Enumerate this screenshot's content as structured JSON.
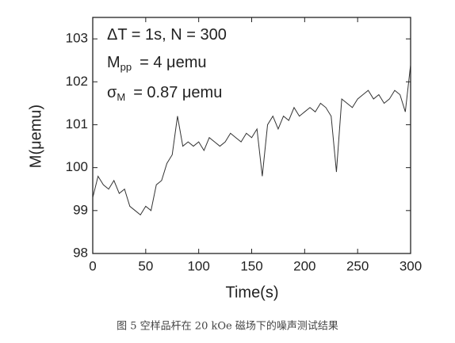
{
  "chart_data": {
    "type": "line",
    "xlabel": "Time(s)",
    "ylabel": "M(μemu)",
    "annotations": [
      {
        "main": "ΔT = 1s, N = 300"
      },
      {
        "main": "M",
        "sub": "pp",
        "rest": "= 4 μemu"
      },
      {
        "main": "σ",
        "sub": "M",
        "rest": "= 0.87 μemu"
      }
    ],
    "caption": "图 5 空样品杆在 20 kOe 磁场下的噪声测试结果",
    "x": [
      0,
      5,
      10,
      15,
      20,
      25,
      30,
      35,
      40,
      45,
      50,
      55,
      60,
      65,
      70,
      75,
      80,
      85,
      90,
      95,
      100,
      105,
      110,
      115,
      120,
      125,
      130,
      135,
      140,
      145,
      150,
      155,
      160,
      165,
      170,
      175,
      180,
      185,
      190,
      195,
      200,
      205,
      210,
      215,
      220,
      225,
      230,
      235,
      240,
      245,
      250,
      255,
      260,
      265,
      270,
      275,
      280,
      285,
      290,
      295,
      300
    ],
    "series": [
      {
        "color": "#333333",
        "values": [
          99.3,
          99.8,
          99.6,
          99.5,
          99.7,
          99.4,
          99.5,
          99.1,
          99.0,
          98.9,
          99.1,
          99.0,
          99.6,
          99.7,
          100.1,
          100.3,
          101.2,
          100.5,
          100.6,
          100.5,
          100.6,
          100.4,
          100.7,
          100.6,
          100.5,
          100.6,
          100.8,
          100.7,
          100.6,
          100.8,
          100.7,
          100.9,
          99.8,
          101.0,
          101.2,
          100.9,
          101.2,
          101.1,
          101.4,
          101.2,
          101.3,
          101.4,
          101.3,
          101.5,
          101.4,
          101.2,
          99.9,
          101.6,
          101.5,
          101.4,
          101.6,
          101.7,
          101.8,
          101.6,
          101.7,
          101.5,
          101.6,
          101.8,
          101.7,
          101.3,
          102.4
        ]
      }
    ],
    "xlim": [
      0,
      300
    ],
    "xticks": [
      0,
      50,
      100,
      150,
      200,
      250,
      300
    ],
    "ylim": [
      98,
      103.5
    ],
    "yticks": [
      98,
      99,
      100,
      101,
      102,
      103
    ],
    "grid": false
  }
}
